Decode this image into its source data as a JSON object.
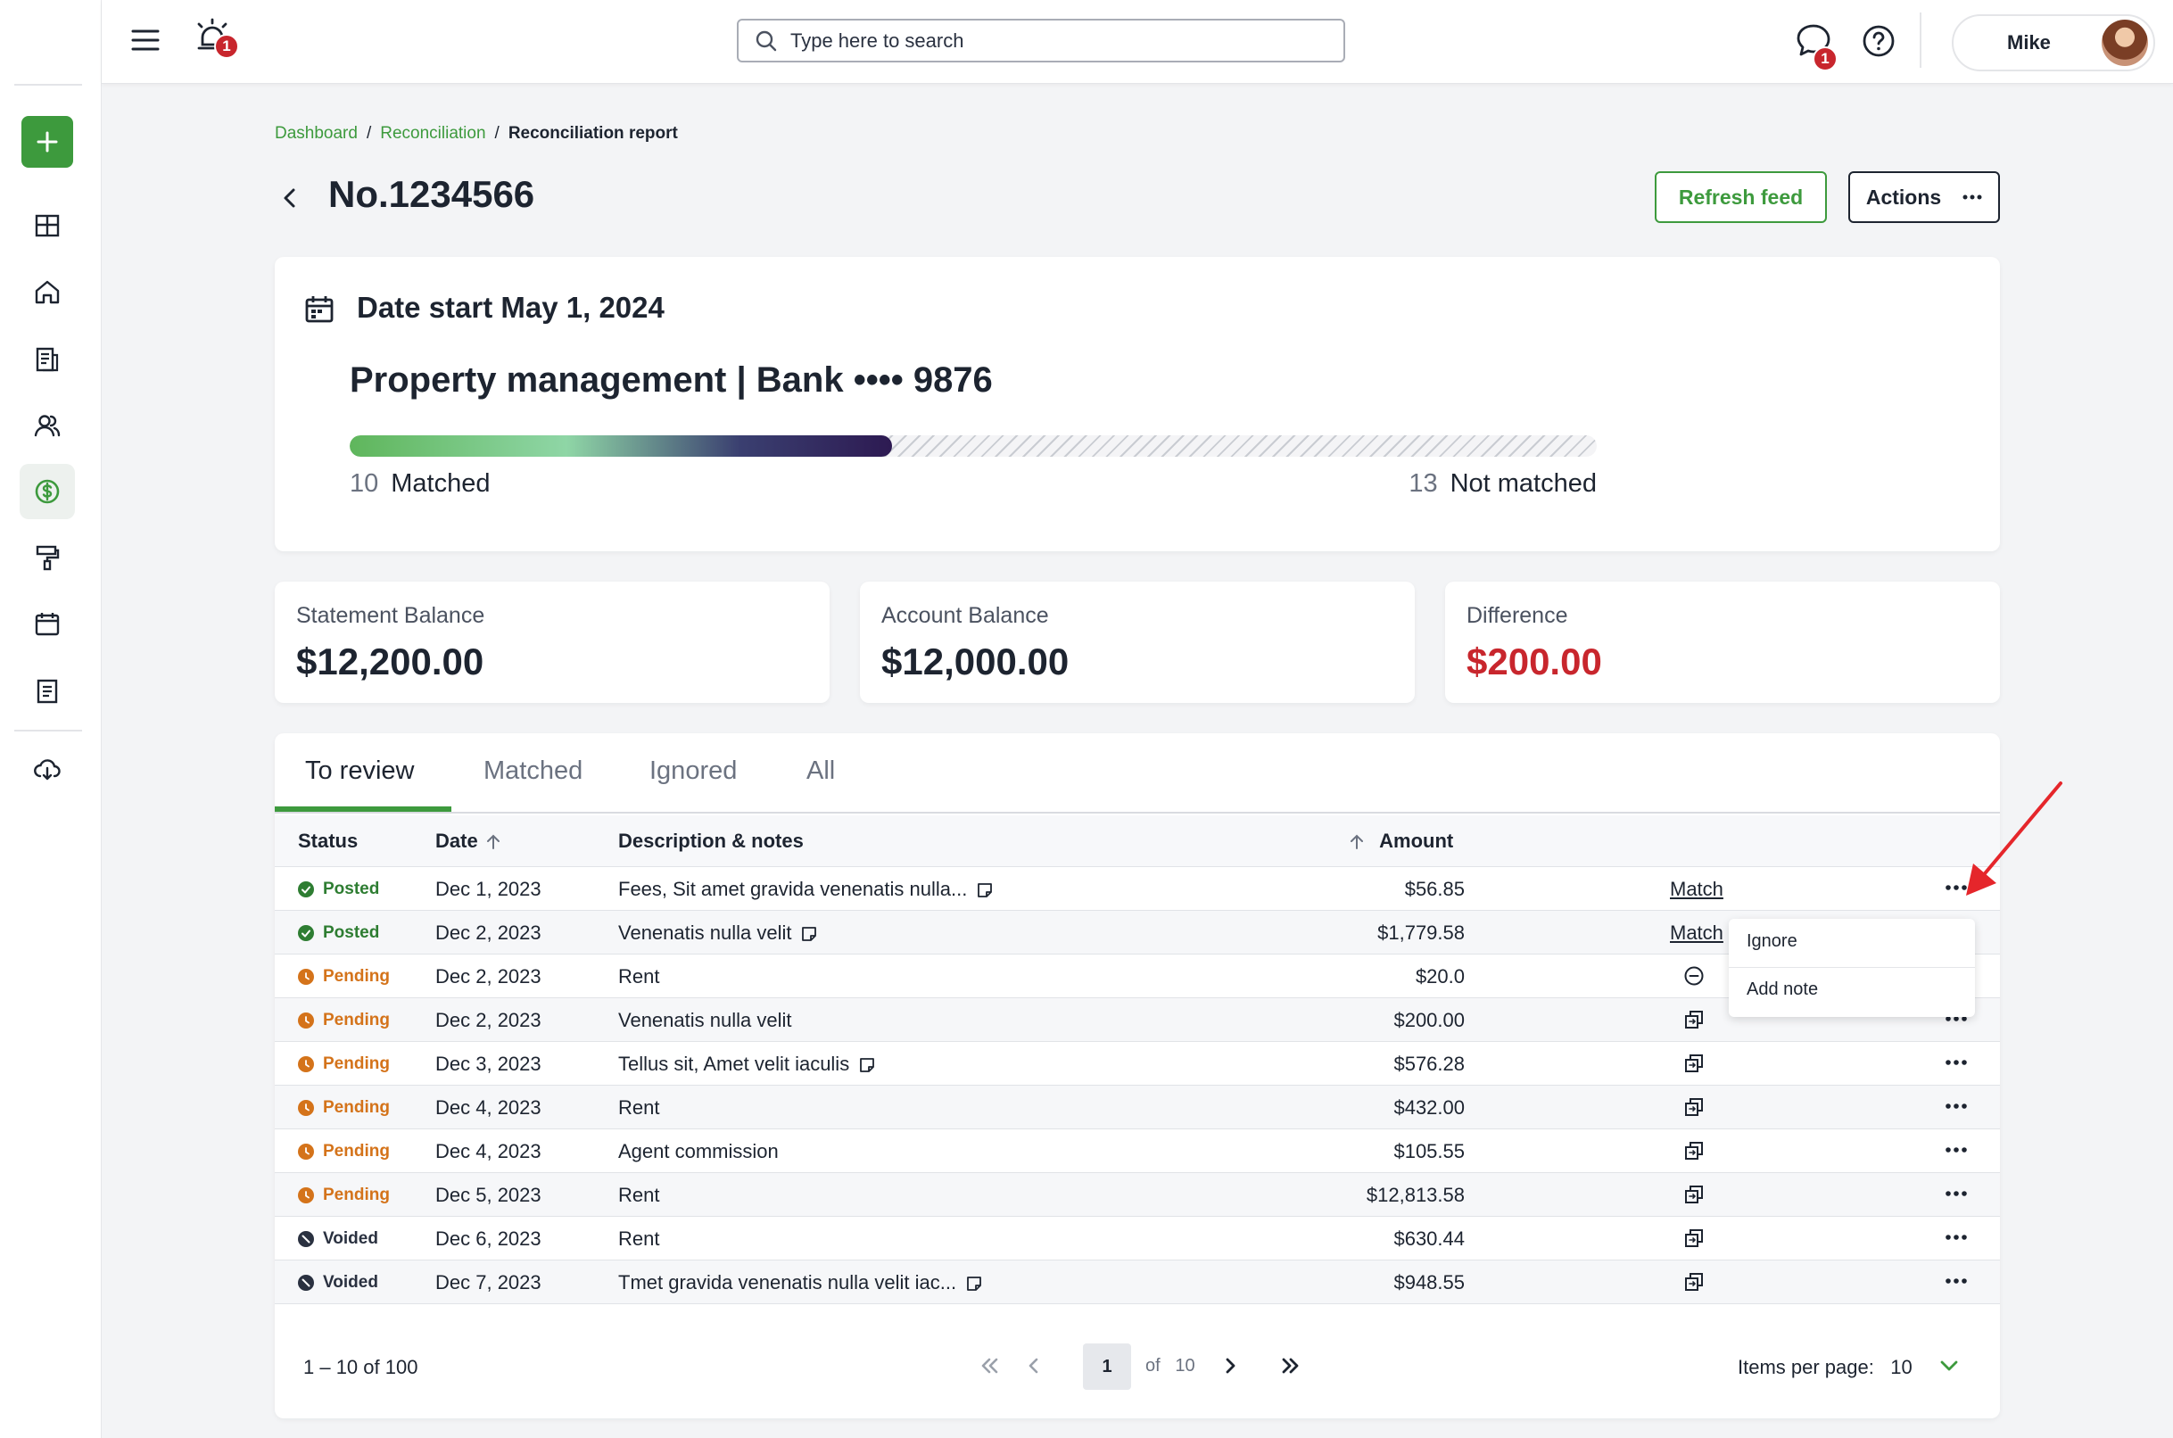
{
  "header": {
    "alarm_badge": "1",
    "search_placeholder": "Type here to search",
    "chat_badge": "1",
    "user_name": "Mike"
  },
  "breadcrumb": {
    "items": [
      "Dashboard",
      "Reconciliation"
    ],
    "separator": "/",
    "current": "Reconciliation report"
  },
  "page": {
    "title": "No.1234566",
    "refresh_label": "Refresh feed",
    "actions_label": "Actions"
  },
  "summary": {
    "date_start": "Date start May 1, 2024",
    "property_title": "Property management | Bank •••• 9876",
    "matched_count": "10",
    "matched_label": "Matched",
    "not_matched_count": "13",
    "not_matched_label": "Not matched",
    "progress_fraction": 0.4348
  },
  "balances": [
    {
      "label": "Statement Balance",
      "value": "$12,200.00"
    },
    {
      "label": "Account Balance",
      "value": "$12,000.00"
    },
    {
      "label": "Difference",
      "value": "$200.00"
    }
  ],
  "tabs": [
    "To review",
    "Matched",
    "Ignored",
    "All"
  ],
  "table": {
    "columns": [
      "Status",
      "Date",
      "Description & notes",
      "Amount"
    ],
    "rows": [
      {
        "status": "Posted",
        "date": "Dec 1, 2023",
        "desc": "Fees, Sit amet gravida venenatis nulla...",
        "amount": "$56.85"
      },
      {
        "status": "Posted",
        "date": "Dec 2, 2023",
        "desc": "Venenatis nulla velit",
        "amount": "$1,779.58"
      },
      {
        "status": "Pending",
        "date": "Dec 2, 2023",
        "desc": "Rent",
        "amount": "$20.0"
      },
      {
        "status": "Pending",
        "date": "Dec 2, 2023",
        "desc": "Venenatis nulla velit",
        "amount": "$200.00"
      },
      {
        "status": "Pending",
        "date": "Dec 3, 2023",
        "desc": "Tellus sit, Amet velit iaculis",
        "amount": "$576.28"
      },
      {
        "status": "Pending",
        "date": "Dec 4, 2023",
        "desc": "Rent",
        "amount": "$432.00"
      },
      {
        "status": "Pending",
        "date": "Dec 4, 2023",
        "desc": "Agent commission",
        "amount": "$105.55"
      },
      {
        "status": "Pending",
        "date": "Dec 5, 2023",
        "desc": "Rent",
        "amount": "$12,813.58"
      },
      {
        "status": "Voided",
        "date": "Dec 6, 2023",
        "desc": "Rent",
        "amount": "$630.44"
      },
      {
        "status": "Voided",
        "date": "Dec 7, 2023",
        "desc": "Tmet gravida venenatis nulla velit iac...",
        "amount": "$948.55"
      }
    ],
    "match_label": "Match"
  },
  "menu": {
    "ignore": "Ignore",
    "add_note": "Add note"
  },
  "pager": {
    "range": "1 – 10 of 100",
    "current": "1",
    "of": "of",
    "total": "10",
    "per_page_label": "Items per page:",
    "per_page_value": "10"
  },
  "colors": {
    "accent": "#3d9a3d",
    "danger": "#c8262d",
    "pending": "#d4731a",
    "text": "#1d2430"
  }
}
